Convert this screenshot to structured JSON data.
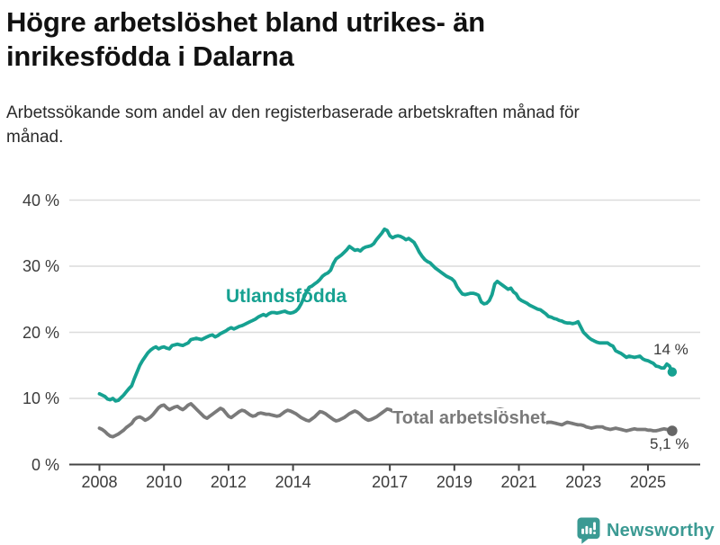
{
  "header": {
    "title": "Högre arbetslöshet bland utrikes- än inrikesfödda i Dalarna",
    "subtitle": "Arbetssökande som andel av den registerbaserade arbetskraften månad för månad."
  },
  "footer": {
    "brand": "Newsworthy",
    "icon": "speech-bubble-bar-chart"
  },
  "colors": {
    "series_foreign": "#16A191",
    "series_total": "#7A7A7A",
    "total_dot": "#666666",
    "brand": "#3B9A93",
    "grid": "#DCDCDC",
    "axis": "#444444",
    "tick_text": "#3B3B3B",
    "annotation_text": "#3A3A3A"
  },
  "chart_data": {
    "type": "line",
    "title": "Högre arbetslöshet bland utrikes- än inrikesfödda i Dalarna",
    "subtitle": "Arbetssökande som andel av den registerbaserade arbetskraften månad för månad.",
    "x_unit": "month",
    "x_start_year": 2008,
    "x_end": "2025-10",
    "points_per_year": 12,
    "x_ticks": [
      2008,
      2010,
      2012,
      2014,
      2017,
      2019,
      2021,
      2023,
      2025
    ],
    "y_ticks": [
      0,
      10,
      20,
      30,
      40
    ],
    "y_suffix": " %",
    "ylim": [
      0,
      40
    ],
    "grid": "horizontal",
    "legend_position": "inline-labels",
    "series": [
      {
        "name": "Utlandsfödda",
        "end_label": "14 %",
        "end_value": 14.0,
        "values": [
          10.7,
          10.5,
          10.3,
          9.9,
          9.8,
          10.0,
          9.6,
          9.7,
          10.1,
          10.5,
          11.0,
          11.5,
          11.9,
          13.0,
          14.0,
          15.0,
          15.7,
          16.3,
          16.9,
          17.3,
          17.6,
          17.8,
          17.5,
          17.7,
          17.8,
          17.6,
          17.5,
          18.0,
          18.1,
          18.2,
          18.1,
          18.0,
          18.2,
          18.4,
          18.9,
          19.0,
          19.1,
          19.0,
          18.9,
          19.1,
          19.3,
          19.5,
          19.6,
          19.3,
          19.5,
          19.8,
          20.0,
          20.2,
          20.5,
          20.7,
          20.5,
          20.7,
          20.9,
          21.0,
          21.2,
          21.4,
          21.6,
          21.8,
          22.0,
          22.3,
          22.5,
          22.7,
          22.5,
          22.8,
          23.0,
          23.0,
          22.9,
          23.0,
          23.1,
          23.2,
          23.0,
          22.9,
          23.0,
          23.2,
          23.6,
          24.3,
          25.2,
          26.1,
          26.8,
          27.0,
          27.3,
          27.6,
          28.0,
          28.5,
          28.8,
          29.0,
          29.4,
          30.4,
          31.1,
          31.4,
          31.7,
          32.1,
          32.5,
          33.0,
          32.7,
          32.4,
          32.5,
          32.3,
          32.7,
          32.9,
          33.0,
          33.1,
          33.4,
          34.0,
          34.5,
          35.0,
          35.6,
          35.4,
          34.6,
          34.3,
          34.5,
          34.6,
          34.5,
          34.3,
          34.0,
          34.2,
          33.9,
          33.6,
          32.9,
          32.1,
          31.5,
          31.0,
          30.7,
          30.5,
          30.1,
          29.7,
          29.4,
          29.1,
          28.8,
          28.5,
          28.3,
          28.1,
          27.7,
          26.9,
          26.3,
          25.8,
          25.7,
          25.8,
          25.9,
          25.9,
          25.8,
          25.6,
          24.6,
          24.3,
          24.4,
          24.8,
          25.7,
          27.3,
          27.7,
          27.4,
          27.1,
          26.8,
          26.5,
          26.7,
          26.1,
          25.8,
          25.1,
          24.8,
          24.6,
          24.4,
          24.1,
          23.9,
          23.7,
          23.5,
          23.4,
          23.1,
          22.8,
          22.4,
          22.3,
          22.1,
          22.0,
          21.8,
          21.7,
          21.5,
          21.4,
          21.4,
          21.3,
          21.4,
          21.6,
          20.8,
          20.0,
          19.6,
          19.2,
          18.9,
          18.7,
          18.5,
          18.4,
          18.4,
          18.4,
          18.4,
          18.1,
          17.9,
          17.2,
          17.0,
          16.8,
          16.5,
          16.2,
          16.4,
          16.3,
          16.2,
          16.3,
          16.4,
          16.0,
          15.8,
          15.7,
          15.5,
          15.3,
          14.9,
          14.8,
          14.6,
          14.6,
          15.2,
          14.9,
          14.0
        ]
      },
      {
        "name": "Total arbetslöshet",
        "end_label": "5,1 %",
        "end_value": 5.1,
        "values": [
          5.5,
          5.3,
          5.0,
          4.6,
          4.3,
          4.2,
          4.4,
          4.6,
          4.9,
          5.2,
          5.6,
          5.9,
          6.2,
          6.8,
          7.1,
          7.2,
          7.0,
          6.7,
          6.9,
          7.2,
          7.6,
          8.1,
          8.6,
          8.9,
          9.0,
          8.6,
          8.3,
          8.5,
          8.7,
          8.8,
          8.5,
          8.3,
          8.6,
          9.0,
          9.2,
          8.8,
          8.4,
          8.0,
          7.6,
          7.2,
          7.0,
          7.3,
          7.6,
          7.9,
          8.2,
          8.5,
          8.3,
          7.8,
          7.3,
          7.1,
          7.4,
          7.7,
          8.0,
          8.2,
          8.1,
          7.8,
          7.5,
          7.3,
          7.4,
          7.7,
          7.8,
          7.7,
          7.6,
          7.6,
          7.5,
          7.4,
          7.3,
          7.4,
          7.7,
          8.0,
          8.2,
          8.1,
          7.9,
          7.7,
          7.4,
          7.1,
          6.9,
          6.7,
          6.6,
          6.9,
          7.2,
          7.6,
          8.0,
          7.9,
          7.7,
          7.4,
          7.1,
          6.8,
          6.6,
          6.7,
          6.9,
          7.1,
          7.4,
          7.7,
          7.9,
          8.1,
          7.9,
          7.6,
          7.2,
          6.9,
          6.7,
          6.8,
          7.0,
          7.2,
          7.5,
          7.8,
          8.1,
          8.4,
          8.3,
          8.1,
          7.8,
          7.5,
          7.2,
          7.0,
          6.9,
          7.0,
          7.2,
          7.4,
          7.6,
          7.8,
          7.7,
          7.5,
          7.2,
          6.9,
          6.6,
          6.4,
          6.3,
          6.4,
          6.6,
          6.8,
          7.0,
          7.2,
          7.1,
          7.0,
          6.8,
          6.6,
          6.4,
          6.3,
          6.2,
          6.3,
          6.5,
          6.7,
          6.9,
          7.0,
          7.1,
          7.2,
          7.6,
          8.1,
          8.3,
          8.4,
          8.3,
          8.2,
          8.0,
          7.8,
          7.7,
          7.8,
          7.9,
          7.8,
          7.6,
          7.3,
          7.0,
          6.8,
          6.6,
          6.5,
          6.4,
          6.3,
          6.3,
          6.4,
          6.4,
          6.3,
          6.2,
          6.1,
          6.0,
          6.2,
          6.4,
          6.3,
          6.2,
          6.1,
          6.0,
          6.0,
          5.9,
          5.7,
          5.6,
          5.5,
          5.6,
          5.7,
          5.7,
          5.7,
          5.5,
          5.4,
          5.3,
          5.4,
          5.5,
          5.4,
          5.3,
          5.2,
          5.1,
          5.2,
          5.3,
          5.4,
          5.3,
          5.3,
          5.3,
          5.3,
          5.2,
          5.2,
          5.1,
          5.1,
          5.2,
          5.3,
          5.4,
          5.3,
          5.2,
          5.1
        ]
      }
    ]
  }
}
